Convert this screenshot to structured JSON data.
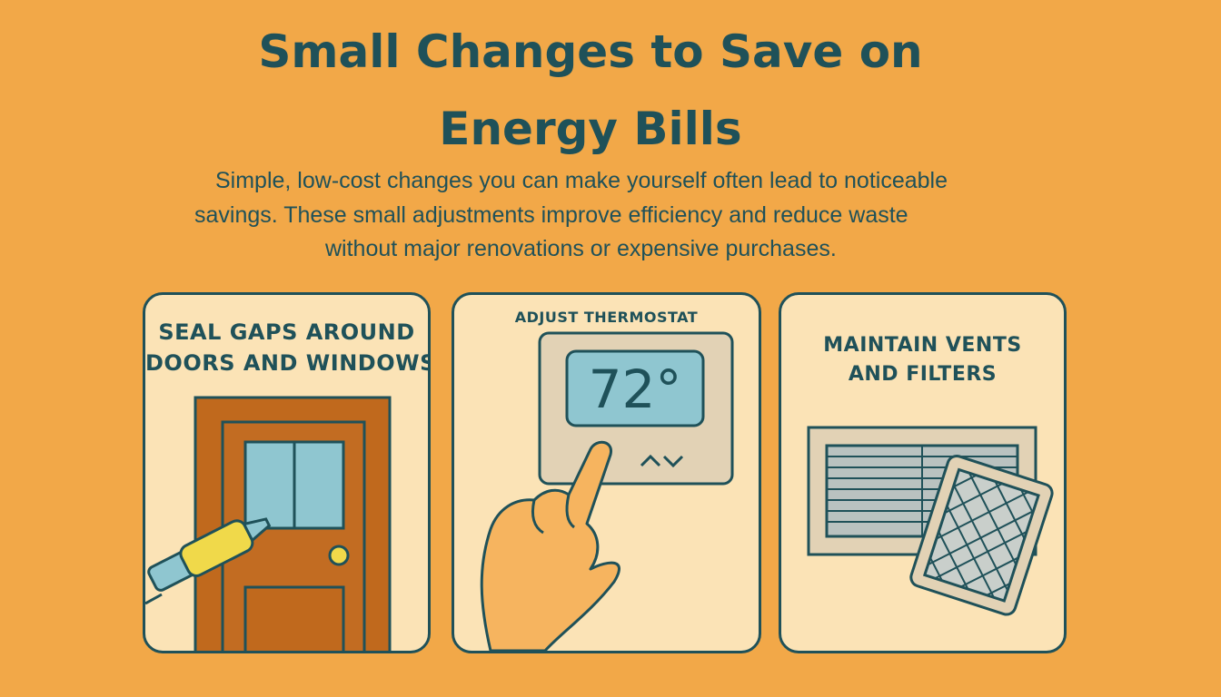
{
  "header": {
    "title_line1": "Small Changes to Save on",
    "title_line2": "Energy Bills"
  },
  "intro": {
    "line1": "Simple, low-cost changes you can make yourself often lead to noticeable",
    "line2": "savings. These small adjustments improve efficiency and reduce waste",
    "line3": "without major renovations or expensive purchases."
  },
  "cards": [
    {
      "title_line1": "SEAL GAPS AROUND",
      "title_line2": "DOORS AND WINDOWS",
      "icon": "door-with-caulk-gun-icon"
    },
    {
      "title": "ADJUST THERMOSTAT",
      "reading": "72°",
      "icon": "thermostat-with-hand-icon"
    },
    {
      "title_line1": "MAINTAIN VENTS",
      "title_line2": "AND FILTERS",
      "icon": "vent-and-filter-icon"
    }
  ],
  "colors": {
    "background": "#f2a848",
    "card": "#fbe3b6",
    "ink": "#1f5159",
    "door": "#c0691d",
    "glass": "#8fc6d0",
    "thermostat_body": "#e2d2b5",
    "hand": "#f6b45f",
    "caulk_yellow": "#f0d94a"
  }
}
